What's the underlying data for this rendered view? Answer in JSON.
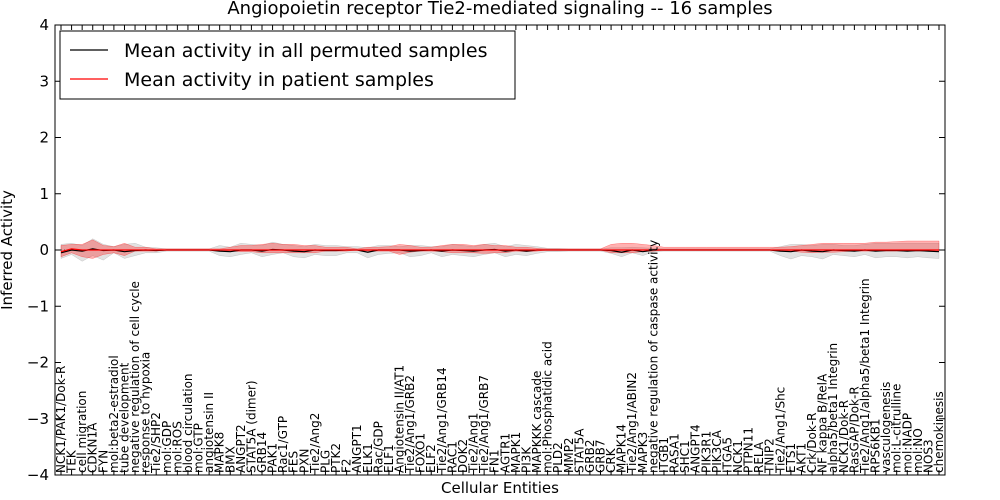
{
  "chart_data": {
    "type": "line",
    "title": "Angiopoietin receptor Tie2-mediated signaling -- 16 samples",
    "xlabel": "Cellular Entities",
    "ylabel": "Inferred Activity",
    "ylim": [
      -4,
      4
    ],
    "yticks": [
      "4",
      "3",
      "2",
      "1",
      "0",
      "−1",
      "−2",
      "−3",
      "−4"
    ],
    "yticks_values": [
      4,
      3,
      2,
      1,
      0,
      -1,
      -2,
      -3,
      -4
    ],
    "grid": false,
    "legend_position": "top-left",
    "categories": [
      "NCK1/PAK1/Dok-R",
      "TEK",
      "cell migration",
      "CDKN1A",
      "FYN",
      "mol:beta2-estradiol",
      "tube development",
      "negative regulation of cell cycle",
      "response to hypoxia",
      "Tie2/SHP2",
      "mol:GDP",
      "mol:ROS",
      "blood circulation",
      "mol:GTP",
      "angiotensin II",
      "MAPK8",
      "BMX",
      "ANGPT2",
      "STAT5A (dimer)",
      "GRB14",
      "PAK1",
      "Rac1/GTP",
      "FES",
      "PXN",
      "Tie2/Ang2",
      "PLG",
      "PTK2",
      "F2",
      "ANGPT1",
      "ELK1",
      "Rac/GDP",
      "ELF1",
      "Angiotensin II/AT1",
      "Tie2/Ang1/GRB2",
      "FOXO1",
      "ELF2",
      "Tie2/Ang1/GRB14",
      "RAC1",
      "DOK2",
      "Tie2/Ang1",
      "Tie2/Ang1/GRB7",
      "FN1",
      "AGTR1",
      "MAPK1",
      "PI3K",
      "MAPKKK cascade",
      "mol:Phosphatidic acid",
      "PLD2",
      "MMP2",
      "STAT5A",
      "GRB2",
      "GRB7",
      "CRK",
      "MAPK14",
      "Tie2/Ang1/ABIN2",
      "MAPK3",
      "negative regulation of caspase activity",
      "ITGB1",
      "RASA1",
      "SHC1",
      "ANGPT4",
      "PIK3R1",
      "PIK3CA",
      "ITGA5",
      "NCK1",
      "PTPN11",
      "RELA",
      "TNIP2",
      "Tie2/Ang1/Shc",
      "ETS1",
      "AKT1",
      "Crk/Dok-R",
      "NF kappa B/RelA",
      "alpha5/beta1 Integrin",
      "NCK1/Dok-R",
      "RasGAP/Dok-R",
      "Tie2/Ang1/alpha5/beta1 Integrin",
      "RPS6KB1",
      "vasculogenesis",
      "mol:L-citrulline",
      "mol:NADP",
      "mol:NO",
      "NOS3",
      "chemokinesis"
    ],
    "series": [
      {
        "name": "Mean activity in all permuted samples",
        "color": "#000000",
        "values": [
          -0.05,
          0.0,
          -0.02,
          0.02,
          -0.01,
          0.0,
          -0.03,
          -0.01,
          0.0,
          -0.01,
          0.0,
          0.0,
          0.0,
          0.0,
          0.0,
          -0.02,
          -0.03,
          0.0,
          0.0,
          -0.02,
          0.01,
          0.0,
          -0.02,
          -0.03,
          0.0,
          -0.01,
          -0.01,
          0.0,
          0.0,
          -0.04,
          0.0,
          0.0,
          0.0,
          -0.02,
          -0.01,
          0.0,
          -0.02,
          0.0,
          -0.01,
          -0.02,
          0.0,
          0.01,
          -0.02,
          0.0,
          -0.02,
          0.0,
          0.0,
          0.0,
          0.0,
          0.0,
          0.0,
          0.0,
          -0.01,
          -0.04,
          0.0,
          -0.03,
          0.0,
          0.0,
          0.0,
          0.0,
          0.0,
          0.0,
          0.0,
          0.0,
          0.0,
          0.0,
          0.0,
          0.0,
          -0.02,
          -0.03,
          0.0,
          -0.02,
          -0.03,
          0.0,
          -0.01,
          -0.02,
          0.0,
          -0.02,
          -0.01,
          -0.01,
          -0.02,
          -0.01,
          -0.02,
          -0.03
        ],
        "band_low": [
          -0.15,
          -0.08,
          -0.2,
          -0.1,
          -0.18,
          -0.05,
          -0.15,
          -0.1,
          -0.05,
          -0.05,
          -0.02,
          -0.02,
          -0.02,
          -0.02,
          -0.02,
          -0.1,
          -0.12,
          -0.08,
          -0.05,
          -0.12,
          -0.08,
          -0.05,
          -0.12,
          -0.14,
          -0.08,
          -0.1,
          -0.1,
          -0.05,
          -0.05,
          -0.14,
          -0.08,
          -0.06,
          -0.05,
          -0.12,
          -0.1,
          -0.05,
          -0.12,
          -0.08,
          -0.1,
          -0.12,
          -0.08,
          -0.05,
          -0.12,
          -0.08,
          -0.1,
          -0.06,
          -0.03,
          -0.03,
          -0.02,
          -0.02,
          -0.02,
          -0.02,
          -0.06,
          -0.12,
          -0.05,
          -0.1,
          -0.03,
          -0.02,
          -0.02,
          -0.02,
          -0.02,
          -0.02,
          -0.02,
          -0.02,
          -0.02,
          -0.02,
          -0.02,
          -0.02,
          -0.1,
          -0.16,
          -0.1,
          -0.12,
          -0.16,
          -0.08,
          -0.1,
          -0.12,
          -0.08,
          -0.14,
          -0.12,
          -0.12,
          -0.14,
          -0.12,
          -0.14,
          -0.15
        ],
        "band_high": [
          0.1,
          0.12,
          0.08,
          0.2,
          0.1,
          0.06,
          0.1,
          0.12,
          0.05,
          0.04,
          0.02,
          0.02,
          0.02,
          0.02,
          0.02,
          0.08,
          0.05,
          0.12,
          0.1,
          0.08,
          0.14,
          0.1,
          0.08,
          0.06,
          0.1,
          0.08,
          0.08,
          0.06,
          0.06,
          0.04,
          0.08,
          0.08,
          0.06,
          0.08,
          0.08,
          0.06,
          0.06,
          0.1,
          0.08,
          0.06,
          0.1,
          0.12,
          0.06,
          0.1,
          0.08,
          0.06,
          0.03,
          0.03,
          0.02,
          0.02,
          0.02,
          0.02,
          0.04,
          0.04,
          0.05,
          0.04,
          0.03,
          0.02,
          0.02,
          0.02,
          0.02,
          0.02,
          0.02,
          0.02,
          0.02,
          0.02,
          0.02,
          0.02,
          0.06,
          0.1,
          0.1,
          0.08,
          0.1,
          0.1,
          0.08,
          0.08,
          0.1,
          0.12,
          0.12,
          0.12,
          0.12,
          0.12,
          0.12,
          0.12
        ]
      },
      {
        "name": "Mean activity in patient samples",
        "color": "#ff0000",
        "values": [
          -0.03,
          0.02,
          0.0,
          0.0,
          0.0,
          0.0,
          0.0,
          0.0,
          0.0,
          0.0,
          0.0,
          0.0,
          0.0,
          0.0,
          0.0,
          0.0,
          0.0,
          0.0,
          0.0,
          0.0,
          0.0,
          0.0,
          0.0,
          0.0,
          0.0,
          0.0,
          0.0,
          0.0,
          0.0,
          0.0,
          0.0,
          0.0,
          0.0,
          0.0,
          0.0,
          0.0,
          0.0,
          0.0,
          0.0,
          0.0,
          0.0,
          0.0,
          0.0,
          0.0,
          0.0,
          0.0,
          0.0,
          0.0,
          0.0,
          0.0,
          0.0,
          0.0,
          0.0,
          0.0,
          0.0,
          0.0,
          0.0,
          0.0,
          0.0,
          0.0,
          0.0,
          0.0,
          0.0,
          0.0,
          0.0,
          0.0,
          0.0,
          0.0,
          0.0,
          0.0,
          0.0,
          0.0,
          0.0,
          0.0,
          0.0,
          0.0,
          0.0,
          0.0,
          0.0,
          0.0,
          0.0,
          0.0,
          0.0,
          0.0
        ],
        "band_low": [
          -0.12,
          -0.05,
          -0.12,
          -0.15,
          -0.08,
          -0.05,
          -0.1,
          -0.02,
          -0.02,
          -0.02,
          0.0,
          0.0,
          0.0,
          0.0,
          0.0,
          0.0,
          -0.02,
          -0.03,
          -0.03,
          -0.05,
          -0.05,
          -0.05,
          -0.05,
          -0.05,
          -0.05,
          -0.02,
          -0.02,
          -0.02,
          0.0,
          -0.02,
          -0.02,
          -0.02,
          -0.08,
          -0.04,
          -0.02,
          -0.02,
          -0.03,
          -0.05,
          -0.05,
          -0.05,
          -0.06,
          -0.05,
          -0.05,
          -0.02,
          -0.03,
          -0.02,
          0.0,
          0.0,
          0.0,
          0.0,
          0.0,
          0.0,
          -0.05,
          -0.05,
          -0.05,
          -0.03,
          -0.02,
          0.0,
          0.0,
          0.0,
          0.0,
          0.0,
          0.0,
          0.0,
          0.0,
          0.0,
          0.0,
          0.0,
          0.0,
          -0.02,
          -0.04,
          -0.05,
          -0.04,
          -0.04,
          -0.03,
          -0.02,
          -0.02,
          -0.02,
          -0.02,
          -0.02,
          -0.02,
          -0.02,
          -0.02,
          -0.02
        ],
        "band_high": [
          0.08,
          0.1,
          0.1,
          0.18,
          0.08,
          0.06,
          0.12,
          0.05,
          0.05,
          0.02,
          0.02,
          0.02,
          0.02,
          0.02,
          0.02,
          0.02,
          0.05,
          0.08,
          0.08,
          0.1,
          0.12,
          0.1,
          0.1,
          0.08,
          0.08,
          0.05,
          0.05,
          0.05,
          0.02,
          0.05,
          0.05,
          0.06,
          0.1,
          0.08,
          0.05,
          0.05,
          0.08,
          0.1,
          0.1,
          0.08,
          0.1,
          0.08,
          0.08,
          0.05,
          0.05,
          0.03,
          0.02,
          0.02,
          0.02,
          0.02,
          0.02,
          0.02,
          0.1,
          0.12,
          0.12,
          0.1,
          0.08,
          0.05,
          0.05,
          0.05,
          0.05,
          0.05,
          0.05,
          0.05,
          0.05,
          0.05,
          0.05,
          0.05,
          0.05,
          0.06,
          0.08,
          0.1,
          0.12,
          0.12,
          0.12,
          0.12,
          0.12,
          0.14,
          0.14,
          0.15,
          0.16,
          0.16,
          0.16,
          0.16
        ]
      }
    ]
  }
}
